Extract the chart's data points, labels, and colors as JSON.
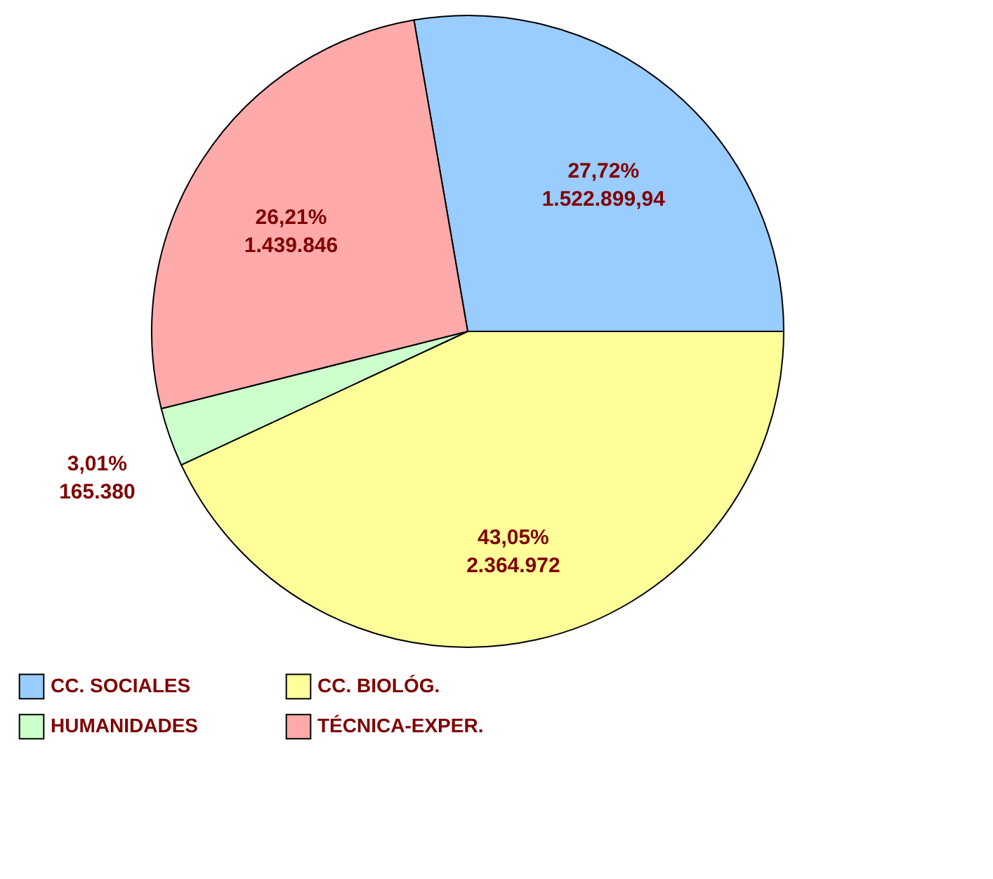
{
  "chart_data": {
    "type": "pie",
    "categories": [
      "CC. SOCIALES",
      "CC. BIOLÓG.",
      "HUMANIDADES",
      "TÉCNICA-EXPER."
    ],
    "values": [
      1522899.94,
      2364972,
      165380,
      1439846
    ],
    "colors": [
      "#99ccff",
      "#ffff99",
      "#ccffcc",
      "#ffaaaa"
    ],
    "value_labels": [
      "27,72%\n1.522.899,94",
      "43,05%\n2.364.972",
      "3,01%\n165.380",
      "26,21%\n1.439.846"
    ],
    "legend": "bottom"
  }
}
